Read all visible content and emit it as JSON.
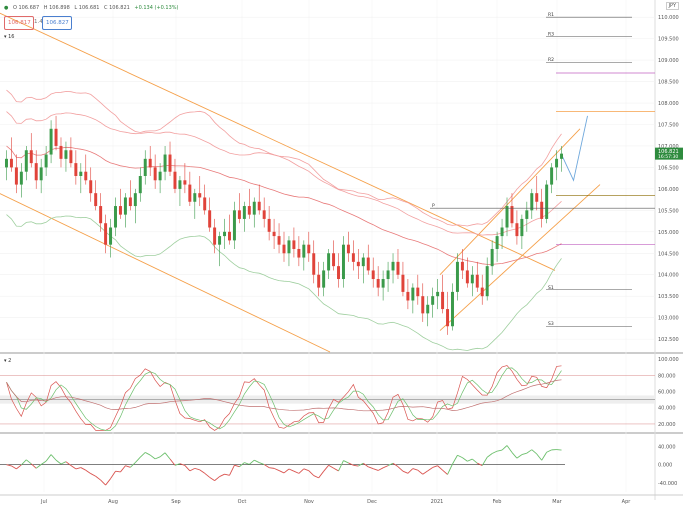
{
  "header": {
    "symbol_dot": "●",
    "ohlc": [
      "O 106.687",
      "H 106.898",
      "L 106.681",
      "C 106.821",
      "+0.134 (+0.13%)"
    ],
    "sell_price": "106.817",
    "spread": "1.4",
    "buy_price": "106.827",
    "currency": "JPY"
  },
  "indicators": {
    "main_label": "▾ 16",
    "rsi_label": "▾ 2"
  },
  "colors": {
    "bull": "#3a9a4a",
    "bear": "#e0433a",
    "channel": "#f5a04a",
    "envelope": "#f2a0a0",
    "ema": "#e87a7a",
    "bollinger_lower": "#9fcf9f",
    "pivot": "#555555",
    "current_price": "#2e8b3e",
    "projection": "#6fa8dc"
  },
  "chart_data": [
    {
      "type": "candlestick",
      "x_ticks": [
        "Jul",
        "Aug",
        "Sep",
        "Oct",
        "Nov",
        "Dec",
        "2021",
        "Feb",
        "Mar",
        "Apr"
      ],
      "y_ticks": [
        "102.500",
        "103.000",
        "103.500",
        "104.000",
        "104.500",
        "105.000",
        "105.500",
        "106.000",
        "106.500",
        "107.000",
        "107.500",
        "108.000",
        "108.500",
        "109.000",
        "109.500",
        "110.000"
      ],
      "ylim": [
        102.2,
        110.4
      ],
      "current_price": "106.821",
      "countdown": "16:57:30",
      "pivot_levels": [
        {
          "label": "R1",
          "value": 110.0
        },
        {
          "label": "R3",
          "value": 109.55
        },
        {
          "label": "R2",
          "value": 108.95
        },
        {
          "label": "P",
          "value": 105.55
        },
        {
          "label": "S1",
          "value": 103.65
        },
        {
          "label": "S3",
          "value": 102.8
        }
      ],
      "candles": [
        [
          106.5,
          106.9,
          106.2,
          106.7
        ],
        [
          106.7,
          107.2,
          106.4,
          106.5
        ],
        [
          106.5,
          106.8,
          105.9,
          106.1
        ],
        [
          106.1,
          106.6,
          105.8,
          106.4
        ],
        [
          106.4,
          107.0,
          106.2,
          106.9
        ],
        [
          106.9,
          107.3,
          106.5,
          106.6
        ],
        [
          106.6,
          106.9,
          106.0,
          106.2
        ],
        [
          106.2,
          106.7,
          105.9,
          106.5
        ],
        [
          106.5,
          107.0,
          106.3,
          106.8
        ],
        [
          106.8,
          107.6,
          106.6,
          107.4
        ],
        [
          107.4,
          107.7,
          106.9,
          107.0
        ],
        [
          107.0,
          107.2,
          106.5,
          106.7
        ],
        [
          106.7,
          107.1,
          106.4,
          106.9
        ],
        [
          106.9,
          107.2,
          106.5,
          106.6
        ],
        [
          106.6,
          106.9,
          106.1,
          106.3
        ],
        [
          106.3,
          106.6,
          105.9,
          106.4
        ],
        [
          106.4,
          106.8,
          106.1,
          106.2
        ],
        [
          106.2,
          106.5,
          105.7,
          105.9
        ],
        [
          105.9,
          106.2,
          105.5,
          105.6
        ],
        [
          105.6,
          105.9,
          105.0,
          105.2
        ],
        [
          105.2,
          105.4,
          104.5,
          104.7
        ],
        [
          104.7,
          105.3,
          104.4,
          105.1
        ],
        [
          105.1,
          105.8,
          104.9,
          105.6
        ],
        [
          105.6,
          106.0,
          105.3,
          105.4
        ],
        [
          105.4,
          105.9,
          105.1,
          105.8
        ],
        [
          105.8,
          106.2,
          105.5,
          105.6
        ],
        [
          105.6,
          106.0,
          105.2,
          105.9
        ],
        [
          105.9,
          106.5,
          105.7,
          106.3
        ],
        [
          106.3,
          106.9,
          106.1,
          106.7
        ],
        [
          106.7,
          107.0,
          106.3,
          106.5
        ],
        [
          106.5,
          106.8,
          106.0,
          106.2
        ],
        [
          106.2,
          106.6,
          105.9,
          106.4
        ],
        [
          106.4,
          107.0,
          106.2,
          106.8
        ],
        [
          106.8,
          107.1,
          106.3,
          106.4
        ],
        [
          106.4,
          106.7,
          105.9,
          106.0
        ],
        [
          106.0,
          106.3,
          105.6,
          106.2
        ],
        [
          106.2,
          106.6,
          105.9,
          106.1
        ],
        [
          106.1,
          106.4,
          105.6,
          105.7
        ],
        [
          105.7,
          106.0,
          105.3,
          105.9
        ],
        [
          105.9,
          106.3,
          105.6,
          105.8
        ],
        [
          105.8,
          106.1,
          105.4,
          105.5
        ],
        [
          105.5,
          105.8,
          105.0,
          105.1
        ],
        [
          105.1,
          105.3,
          104.5,
          104.7
        ],
        [
          104.7,
          105.0,
          104.2,
          104.9
        ],
        [
          104.9,
          105.3,
          104.6,
          105.0
        ],
        [
          105.0,
          105.4,
          104.7,
          104.8
        ],
        [
          104.8,
          105.7,
          104.6,
          105.5
        ],
        [
          105.5,
          105.9,
          105.2,
          105.3
        ],
        [
          105.3,
          105.7,
          105.0,
          105.6
        ],
        [
          105.6,
          106.0,
          105.3,
          105.4
        ],
        [
          105.4,
          105.8,
          105.1,
          105.7
        ],
        [
          105.7,
          106.1,
          105.4,
          105.5
        ],
        [
          105.5,
          105.8,
          105.1,
          105.3
        ],
        [
          105.3,
          105.6,
          104.8,
          105.0
        ],
        [
          105.0,
          105.3,
          104.6,
          104.9
        ],
        [
          104.9,
          105.2,
          104.5,
          104.7
        ],
        [
          104.7,
          105.0,
          104.3,
          104.5
        ],
        [
          104.5,
          104.9,
          104.2,
          104.8
        ],
        [
          104.8,
          105.1,
          104.4,
          104.6
        ],
        [
          104.6,
          104.9,
          104.2,
          104.4
        ],
        [
          104.4,
          104.8,
          104.1,
          104.7
        ],
        [
          104.7,
          105.0,
          104.3,
          104.5
        ],
        [
          104.5,
          104.8,
          103.8,
          104.0
        ],
        [
          104.0,
          104.3,
          103.5,
          103.7
        ],
        [
          103.7,
          104.3,
          103.5,
          104.1
        ],
        [
          104.1,
          104.6,
          103.9,
          104.5
        ],
        [
          104.5,
          104.8,
          104.1,
          104.2
        ],
        [
          104.2,
          104.5,
          103.7,
          103.9
        ],
        [
          103.9,
          104.9,
          103.7,
          104.7
        ],
        [
          104.7,
          105.0,
          104.3,
          104.5
        ],
        [
          104.5,
          104.8,
          104.1,
          104.3
        ],
        [
          104.3,
          104.6,
          103.9,
          104.2
        ],
        [
          104.2,
          104.5,
          103.8,
          104.4
        ],
        [
          104.4,
          104.7,
          104.0,
          104.1
        ],
        [
          104.1,
          104.4,
          103.7,
          103.9
        ],
        [
          103.9,
          104.2,
          103.5,
          103.7
        ],
        [
          103.7,
          104.1,
          103.4,
          103.9
        ],
        [
          103.9,
          104.3,
          103.6,
          104.1
        ],
        [
          104.1,
          104.5,
          103.8,
          104.3
        ],
        [
          104.3,
          104.6,
          103.9,
          104.0
        ],
        [
          104.0,
          104.3,
          103.5,
          103.6
        ],
        [
          103.6,
          103.9,
          103.2,
          103.4
        ],
        [
          103.4,
          103.8,
          103.1,
          103.7
        ],
        [
          103.7,
          104.0,
          103.3,
          103.5
        ],
        [
          103.5,
          103.8,
          102.9,
          103.1
        ],
        [
          103.1,
          103.5,
          102.8,
          103.3
        ],
        [
          103.3,
          103.7,
          103.0,
          103.5
        ],
        [
          103.5,
          103.9,
          103.2,
          103.6
        ],
        [
          103.6,
          104.0,
          103.1,
          103.2
        ],
        [
          103.2,
          103.6,
          102.6,
          102.8
        ],
        [
          102.8,
          103.8,
          102.7,
          103.6
        ],
        [
          103.6,
          104.5,
          103.4,
          104.3
        ],
        [
          104.3,
          104.6,
          103.9,
          104.1
        ],
        [
          104.1,
          104.4,
          103.7,
          103.8
        ],
        [
          103.8,
          104.2,
          103.5,
          104.0
        ],
        [
          104.0,
          104.3,
          103.6,
          103.7
        ],
        [
          103.7,
          104.0,
          103.3,
          103.5
        ],
        [
          103.5,
          104.4,
          103.4,
          104.2
        ],
        [
          104.2,
          104.8,
          104.0,
          104.6
        ],
        [
          104.6,
          105.0,
          104.3,
          104.9
        ],
        [
          104.9,
          105.3,
          104.6,
          105.1
        ],
        [
          105.1,
          105.8,
          104.9,
          105.6
        ],
        [
          105.6,
          105.9,
          105.1,
          105.2
        ],
        [
          105.2,
          105.5,
          104.7,
          104.9
        ],
        [
          104.9,
          105.4,
          104.6,
          105.3
        ],
        [
          105.3,
          105.7,
          105.0,
          105.5
        ],
        [
          105.5,
          106.0,
          105.3,
          105.9
        ],
        [
          105.9,
          106.3,
          105.5,
          105.7
        ],
        [
          105.7,
          106.0,
          105.1,
          105.3
        ],
        [
          105.3,
          106.2,
          105.2,
          106.1
        ],
        [
          106.1,
          106.6,
          105.9,
          106.5
        ],
        [
          106.5,
          106.9,
          106.2,
          106.7
        ],
        [
          106.7,
          107.0,
          106.4,
          106.821
        ]
      ],
      "rsi_panel": {
        "y_ticks": [
          "20.000",
          "40.000",
          "60.000",
          "80.000",
          "100.000"
        ],
        "ylim": [
          10,
          105
        ],
        "levels": [
          80,
          50,
          20
        ]
      },
      "oscillator_panel": {
        "y_ticks": [
          "-40.000",
          "0.000",
          "40.000"
        ],
        "ylim": [
          -60,
          65
        ],
        "level": 0
      }
    }
  ]
}
